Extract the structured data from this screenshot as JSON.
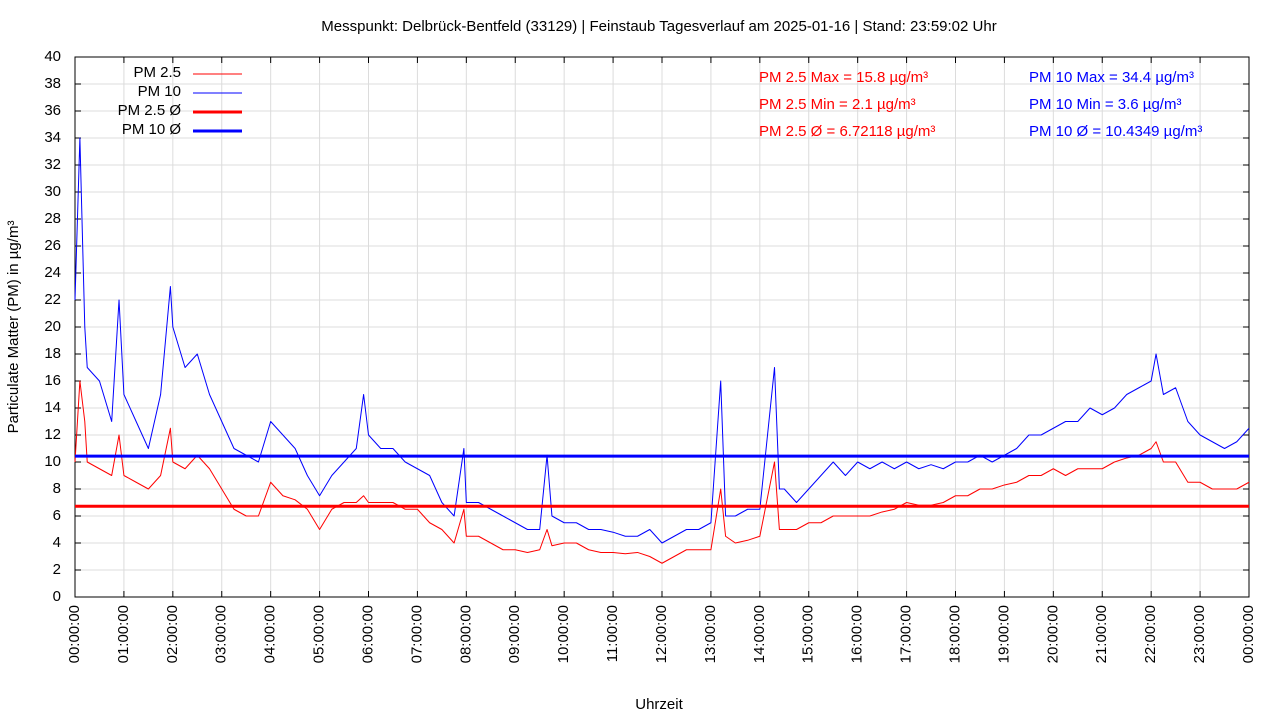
{
  "chart_data": {
    "type": "line",
    "title": "Messpunkt: Delbrück-Bentfeld (33129) | Feinstaub Tagesverlauf am 2025-01-16 | Stand: 23:59:02 Uhr",
    "xlabel": "Uhrzeit",
    "ylabel": "Particulate Matter (PM) in µg/m³",
    "xlim": [
      0,
      24
    ],
    "ylim": [
      0,
      40
    ],
    "yticks": [
      0,
      2,
      4,
      6,
      8,
      10,
      12,
      14,
      16,
      18,
      20,
      22,
      24,
      26,
      28,
      30,
      32,
      34,
      36,
      38,
      40
    ],
    "xticks": [
      {
        "value": 0,
        "label": "00:00:00"
      },
      {
        "value": 1,
        "label": "01:00:00"
      },
      {
        "value": 2,
        "label": "02:00:00"
      },
      {
        "value": 3,
        "label": "03:00:00"
      },
      {
        "value": 4,
        "label": "04:00:00"
      },
      {
        "value": 5,
        "label": "05:00:00"
      },
      {
        "value": 6,
        "label": "06:00:00"
      },
      {
        "value": 7,
        "label": "07:00:00"
      },
      {
        "value": 8,
        "label": "08:00:00"
      },
      {
        "value": 9,
        "label": "09:00:00"
      },
      {
        "value": 10,
        "label": "10:00:00"
      },
      {
        "value": 11,
        "label": "11:00:00"
      },
      {
        "value": 12,
        "label": "12:00:00"
      },
      {
        "value": 13,
        "label": "13:00:00"
      },
      {
        "value": 14,
        "label": "14:00:00"
      },
      {
        "value": 15,
        "label": "15:00:00"
      },
      {
        "value": 16,
        "label": "16:00:00"
      },
      {
        "value": 17,
        "label": "17:00:00"
      },
      {
        "value": 18,
        "label": "18:00:00"
      },
      {
        "value": 19,
        "label": "19:00:00"
      },
      {
        "value": 20,
        "label": "20:00:00"
      },
      {
        "value": 21,
        "label": "21:00:00"
      },
      {
        "value": 22,
        "label": "22:00:00"
      },
      {
        "value": 23,
        "label": "23:00:00"
      },
      {
        "value": 24,
        "label": "00:00:00"
      }
    ],
    "grid": true,
    "legend": "top-left",
    "x": [
      0,
      0.1,
      0.2,
      0.25,
      0.5,
      0.75,
      0.9,
      1,
      1.25,
      1.5,
      1.75,
      1.95,
      2,
      2.25,
      2.5,
      2.75,
      3,
      3.25,
      3.5,
      3.75,
      4,
      4.25,
      4.5,
      4.75,
      5,
      5.25,
      5.5,
      5.75,
      5.9,
      6,
      6.25,
      6.5,
      6.75,
      7,
      7.25,
      7.5,
      7.75,
      7.95,
      8,
      8.25,
      8.5,
      8.75,
      9,
      9.25,
      9.5,
      9.65,
      9.75,
      10,
      10.25,
      10.5,
      10.75,
      11,
      11.25,
      11.5,
      11.75,
      12,
      12.25,
      12.5,
      12.75,
      13,
      13.2,
      13.3,
      13.5,
      13.75,
      14,
      14.3,
      14.4,
      14.5,
      14.75,
      15,
      15.25,
      15.5,
      15.75,
      16,
      16.25,
      16.5,
      16.75,
      17,
      17.25,
      17.5,
      17.75,
      18,
      18.25,
      18.5,
      18.75,
      19,
      19.25,
      19.5,
      19.75,
      20,
      20.25,
      20.5,
      20.75,
      21,
      21.25,
      21.5,
      21.75,
      22,
      22.1,
      22.25,
      22.5,
      22.75,
      23,
      23.25,
      23.5,
      23.75,
      24
    ],
    "series": [
      {
        "name": "PM 2.5",
        "color": "#ff0000",
        "line_width": 1,
        "values": [
          10,
          16,
          13,
          10,
          9.5,
          9,
          12,
          9,
          8.5,
          8,
          9,
          12.5,
          10,
          9.5,
          10.5,
          9.5,
          8,
          6.5,
          6,
          6,
          8.5,
          7.5,
          7.2,
          6.5,
          5,
          6.5,
          7,
          7,
          7.5,
          7,
          7,
          7,
          6.5,
          6.5,
          5.5,
          5,
          4,
          6.5,
          4.5,
          4.5,
          4,
          3.5,
          3.5,
          3.3,
          3.5,
          5,
          3.8,
          4,
          4,
          3.5,
          3.3,
          3.3,
          3.2,
          3.3,
          3,
          2.5,
          3,
          3.5,
          3.5,
          3.5,
          8,
          4.5,
          4,
          4.2,
          4.5,
          10,
          5,
          5,
          5,
          5.5,
          5.5,
          6,
          6,
          6,
          6,
          6.3,
          6.5,
          7,
          6.8,
          6.8,
          7,
          7.5,
          7.5,
          8,
          8,
          8.3,
          8.5,
          9,
          9,
          9.5,
          9,
          9.5,
          9.5,
          9.5,
          10,
          10.3,
          10.5,
          11,
          11.5,
          10,
          10,
          8.5,
          8.5,
          8,
          8,
          8,
          8.5
        ]
      },
      {
        "name": "PM 10",
        "color": "#0000ff",
        "line_width": 1,
        "values": [
          22,
          34,
          20,
          17,
          16,
          13,
          22,
          15,
          13,
          11,
          15,
          23,
          20,
          17,
          18,
          15,
          13,
          11,
          10.5,
          10,
          13,
          12,
          11,
          9,
          7.5,
          9,
          10,
          11,
          15,
          12,
          11,
          11,
          10,
          9.5,
          9,
          7,
          6,
          11,
          7,
          7,
          6.5,
          6,
          5.5,
          5,
          5,
          10.5,
          6,
          5.5,
          5.5,
          5,
          5,
          4.8,
          4.5,
          4.5,
          5,
          4,
          4.5,
          5,
          5,
          5.5,
          16,
          6,
          6,
          6.5,
          6.5,
          17,
          8,
          8,
          7,
          8,
          9,
          10,
          9,
          10,
          9.5,
          10,
          9.5,
          10,
          9.5,
          9.8,
          9.5,
          10,
          10,
          10.5,
          10,
          10.5,
          11,
          12,
          12,
          12.5,
          13,
          13,
          14,
          13.5,
          14,
          15,
          15.5,
          16,
          18,
          15,
          15.5,
          13,
          12,
          11.5,
          11,
          11.5,
          12.5
        ]
      },
      {
        "name": "PM 2.5 Ø",
        "color": "#ff0000",
        "line_width": 3,
        "x": [
          0,
          24
        ],
        "values": [
          6.72118,
          6.72118
        ]
      },
      {
        "name": "PM 10 Ø",
        "color": "#0000ff",
        "line_width": 3,
        "x": [
          0,
          24
        ],
        "values": [
          10.4349,
          10.4349
        ]
      }
    ],
    "annotations": [
      {
        "text": "PM 2.5 Max = 15.8 µg/m³",
        "color": "#ff0000"
      },
      {
        "text": "PM 2.5 Min = 2.1 µg/m³",
        "color": "#ff0000"
      },
      {
        "text": "PM 2.5 Ø = 6.72118 µg/m³",
        "color": "#ff0000"
      },
      {
        "text": "PM 10 Max = 34.4 µg/m³",
        "color": "#0000ff"
      },
      {
        "text": "PM 10 Min = 3.6 µg/m³",
        "color": "#0000ff"
      },
      {
        "text": "PM 10 Ø = 10.4349 µg/m³",
        "color": "#0000ff"
      }
    ]
  }
}
